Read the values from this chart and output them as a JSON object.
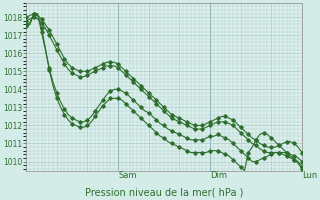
{
  "xlabel": "Pression niveau de la mer( hPa )",
  "bg_color": "#d4ece8",
  "plot_bg": "#ddf0ec",
  "grid_color": "#aacccc",
  "line_color": "#2d6e2d",
  "ylim": [
    1009.5,
    1018.8
  ],
  "yticks": [
    1010,
    1011,
    1012,
    1013,
    1014,
    1015,
    1016,
    1017,
    1018
  ],
  "n_points": 73,
  "day_ticks": [
    0.333,
    0.666,
    1.0
  ],
  "day_labels": [
    "Sam",
    "Dim",
    "Lun"
  ],
  "series": [
    [
      1018.0,
      1018.1,
      1018.2,
      1018.1,
      1017.9,
      1017.6,
      1017.3,
      1016.9,
      1016.5,
      1016.1,
      1015.7,
      1015.4,
      1015.2,
      1015.1,
      1015.0,
      1015.0,
      1015.0,
      1015.1,
      1015.2,
      1015.3,
      1015.4,
      1015.5,
      1015.5,
      1015.5,
      1015.4,
      1015.2,
      1015.0,
      1014.8,
      1014.6,
      1014.4,
      1014.2,
      1014.0,
      1013.8,
      1013.6,
      1013.4,
      1013.2,
      1013.0,
      1012.8,
      1012.6,
      1012.5,
      1012.4,
      1012.3,
      1012.2,
      1012.1,
      1012.0,
      1012.0,
      1012.0,
      1012.1,
      1012.2,
      1012.3,
      1012.4,
      1012.5,
      1012.5,
      1012.4,
      1012.3,
      1012.1,
      1011.9,
      1011.7,
      1011.5,
      1011.3,
      1011.2,
      1011.0,
      1010.9,
      1010.8,
      1010.8,
      1010.8,
      1010.9,
      1011.0,
      1011.1,
      1011.1,
      1011.0,
      1010.8,
      1010.5
    ],
    [
      1017.8,
      1017.9,
      1018.0,
      1017.9,
      1017.7,
      1017.4,
      1017.0,
      1016.6,
      1016.2,
      1015.8,
      1015.4,
      1015.1,
      1014.9,
      1014.8,
      1014.7,
      1014.7,
      1014.8,
      1014.9,
      1015.0,
      1015.1,
      1015.2,
      1015.3,
      1015.3,
      1015.3,
      1015.2,
      1015.0,
      1014.8,
      1014.6,
      1014.4,
      1014.2,
      1014.0,
      1013.8,
      1013.6,
      1013.4,
      1013.2,
      1013.0,
      1012.8,
      1012.6,
      1012.4,
      1012.3,
      1012.2,
      1012.1,
      1012.0,
      1011.9,
      1011.8,
      1011.8,
      1011.8,
      1011.9,
      1012.0,
      1012.1,
      1012.2,
      1012.2,
      1012.2,
      1012.1,
      1012.0,
      1011.8,
      1011.6,
      1011.4,
      1011.2,
      1011.0,
      1010.9,
      1010.7,
      1010.6,
      1010.5,
      1010.5,
      1010.5,
      1010.5,
      1010.5,
      1010.5,
      1010.4,
      1010.3,
      1010.2,
      1010.0
    ],
    [
      1017.6,
      1017.7,
      1018.2,
      1018.1,
      1017.2,
      1016.2,
      1015.2,
      1014.4,
      1013.8,
      1013.3,
      1012.9,
      1012.6,
      1012.4,
      1012.3,
      1012.2,
      1012.2,
      1012.3,
      1012.5,
      1012.8,
      1013.1,
      1013.4,
      1013.7,
      1013.9,
      1014.0,
      1014.0,
      1013.9,
      1013.8,
      1013.6,
      1013.4,
      1013.2,
      1013.0,
      1012.8,
      1012.7,
      1012.5,
      1012.3,
      1012.1,
      1012.0,
      1011.8,
      1011.7,
      1011.6,
      1011.5,
      1011.4,
      1011.3,
      1011.2,
      1011.2,
      1011.2,
      1011.2,
      1011.3,
      1011.4,
      1011.4,
      1011.5,
      1011.4,
      1011.3,
      1011.2,
      1011.0,
      1010.8,
      1010.6,
      1010.4,
      1010.2,
      1010.0,
      1010.0,
      1010.1,
      1010.2,
      1010.3,
      1010.4,
      1010.5,
      1010.5,
      1010.4,
      1010.3,
      1010.2,
      1010.1,
      1010.0,
      1009.7
    ],
    [
      1017.5,
      1017.6,
      1018.2,
      1018.2,
      1017.4,
      1016.3,
      1015.1,
      1014.2,
      1013.5,
      1013.0,
      1012.6,
      1012.3,
      1012.1,
      1012.0,
      1011.9,
      1011.9,
      1012.0,
      1012.2,
      1012.5,
      1012.8,
      1013.1,
      1013.3,
      1013.5,
      1013.5,
      1013.5,
      1013.4,
      1013.2,
      1013.0,
      1012.8,
      1012.6,
      1012.4,
      1012.2,
      1012.0,
      1011.8,
      1011.6,
      1011.4,
      1011.3,
      1011.1,
      1011.0,
      1010.9,
      1010.8,
      1010.7,
      1010.6,
      1010.5,
      1010.5,
      1010.5,
      1010.5,
      1010.5,
      1010.6,
      1010.6,
      1010.6,
      1010.5,
      1010.4,
      1010.3,
      1010.1,
      1009.9,
      1009.7,
      1009.5,
      1010.5,
      1010.8,
      1011.2,
      1011.5,
      1011.6,
      1011.5,
      1011.3,
      1011.1,
      1010.9,
      1010.7,
      1010.5,
      1010.3,
      1010.1,
      1009.9,
      1009.6
    ]
  ]
}
